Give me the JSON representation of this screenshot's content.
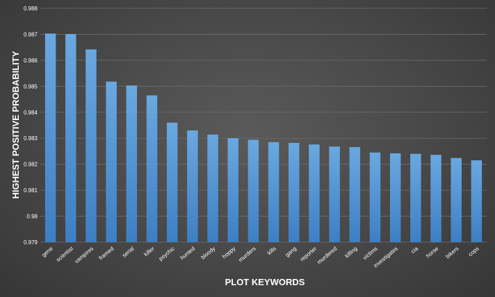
{
  "chart_data": {
    "type": "bar",
    "title": "",
    "xlabel": "PLOT KEYWORDS",
    "ylabel": "HIGHEST POSITIVE PROBABILITY",
    "ylim": [
      0.979,
      0.988
    ],
    "yticks": [
      "0.979",
      "0.98",
      "0.981",
      "0.982",
      "0.983",
      "0.984",
      "0.985",
      "0.986",
      "0.987",
      "0.988"
    ],
    "grid": true,
    "legend": "none",
    "categories": [
      "gene",
      "scientist",
      "vampires",
      "framed",
      "serial",
      "killer",
      "psychic",
      "hunted",
      "bloody",
      "hoppy",
      "murders",
      "kills",
      "gang",
      "reporter",
      "murdered",
      "killing",
      "victims",
      "investigates",
      "cia",
      "horse",
      "bikers",
      "cops"
    ],
    "values": [
      0.98703,
      0.98701,
      0.98642,
      0.98518,
      0.98503,
      0.98465,
      0.9836,
      0.9833,
      0.98314,
      0.983,
      0.98294,
      0.98285,
      0.98282,
      0.98276,
      0.98268,
      0.98266,
      0.98245,
      0.98242,
      0.9824,
      0.98236,
      0.98224,
      0.98215
    ],
    "colors": {
      "bar": "#5b9bd5",
      "bar_top": "#6aa8e0",
      "bar_bottom": "#3d7fc4",
      "grid": "#6e6e6e",
      "text": "#ffffff"
    }
  }
}
